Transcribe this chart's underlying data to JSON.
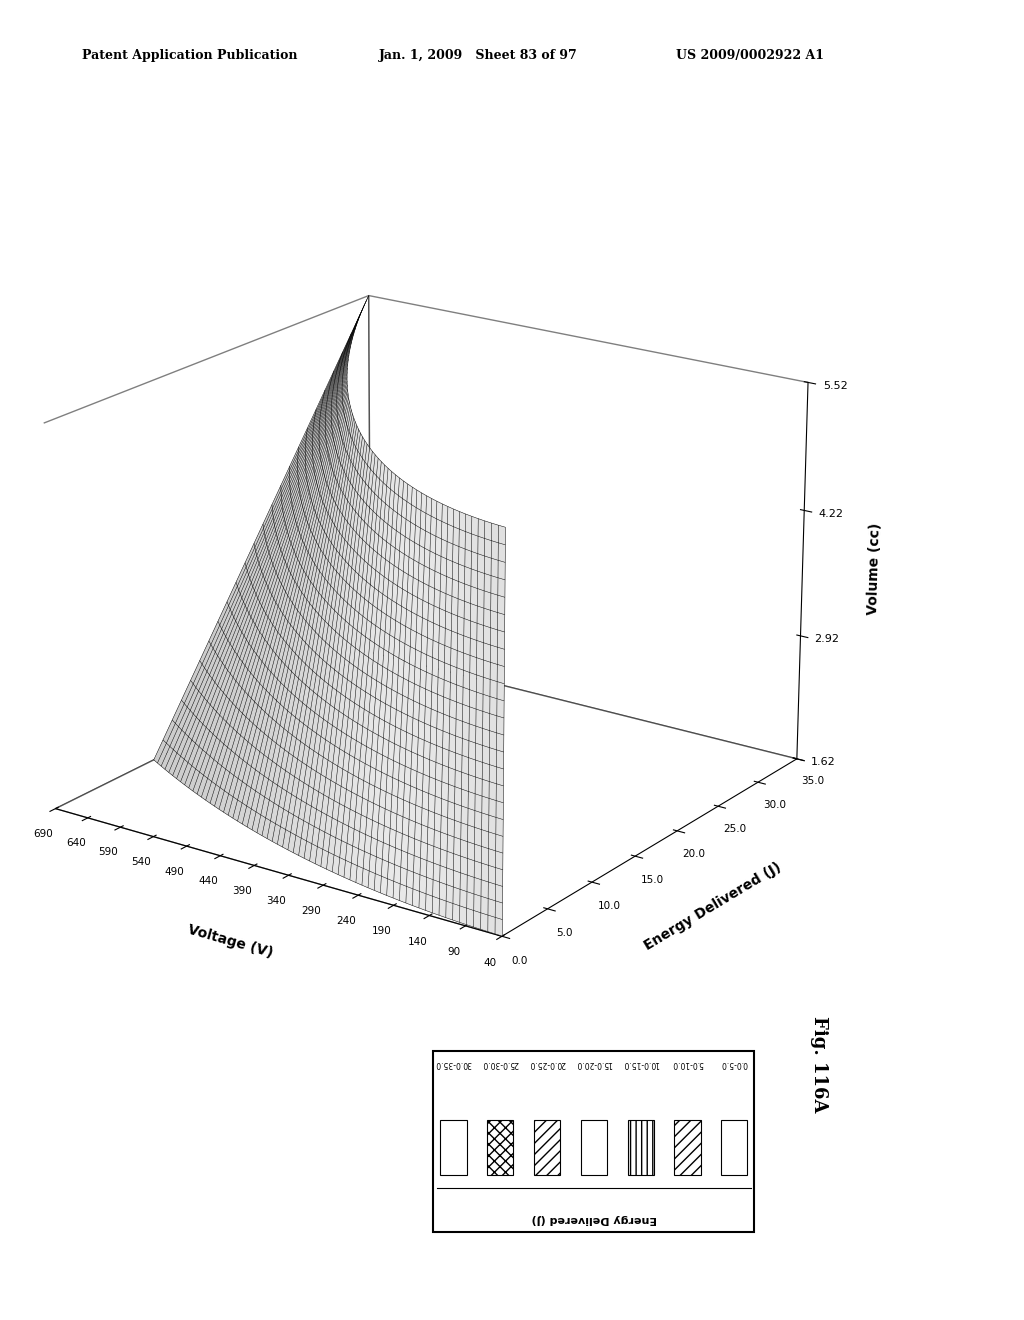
{
  "xlabel": "Voltage (V)",
  "ylabel": "Energy Delivered (J)",
  "zlabel": "Volume (cc)",
  "voltage_min": 40,
  "voltage_max": 690,
  "voltage_ticks": [
    40,
    90,
    140,
    190,
    240,
    290,
    340,
    390,
    440,
    490,
    540,
    590,
    640,
    690
  ],
  "energy_min": 0.0,
  "energy_max": 35.0,
  "energy_ticks": [
    0.0,
    5.0,
    10.0,
    15.0,
    20.0,
    25.0,
    30.0,
    35.0
  ],
  "volume_min": 1.62,
  "volume_max": 5.52,
  "volume_ticks": [
    1.62,
    2.92,
    4.22,
    5.52
  ],
  "header_left": "Patent Application Publication",
  "header_center": "Jan. 1, 2009   Sheet 83 of 97",
  "header_right": "US 2009/0002922 A1",
  "fig_label": "Fig. 116A",
  "legend_title": "Energy Delivered (J)",
  "legend_entries": [
    "30.0-35.0",
    "25.0-30.0",
    "20.0-25.0",
    "15.0-20.0",
    "10.0-15.0",
    "5.0-10.0",
    "0.0-5.0"
  ],
  "background_color": "#ffffff",
  "elev": 20,
  "azim": -55,
  "n_voltage": 65,
  "n_volume": 25
}
